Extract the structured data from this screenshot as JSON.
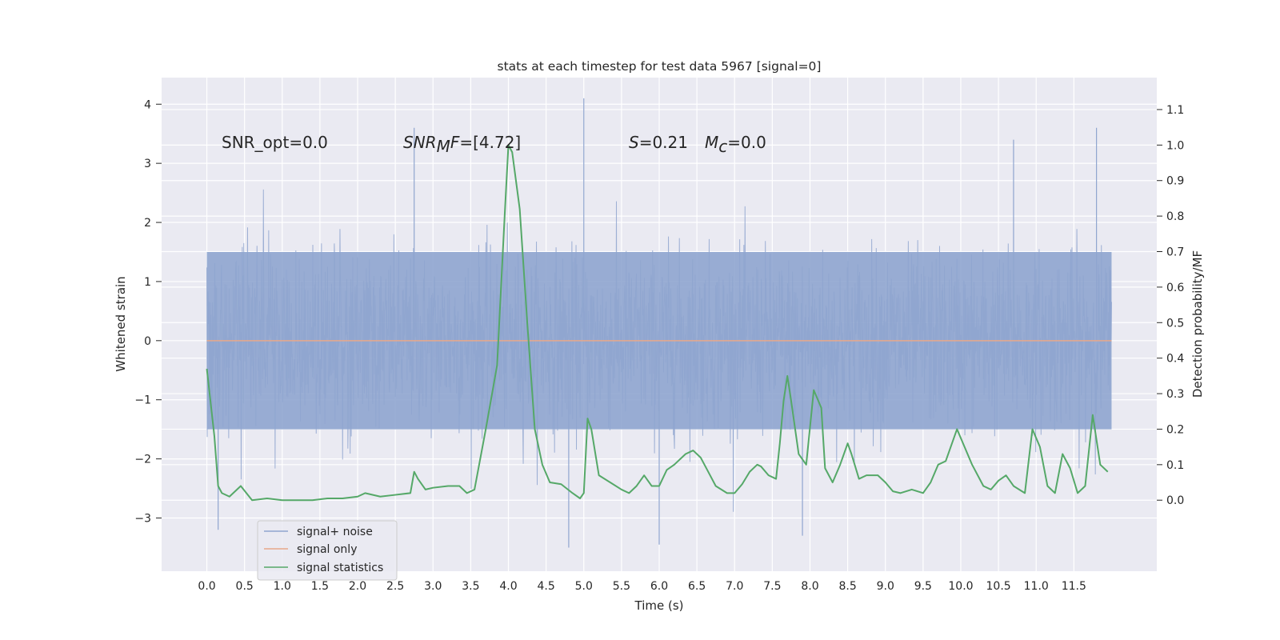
{
  "chart_data": {
    "type": "line",
    "title": "stats at each timestep for test data 5967 [signal=0]",
    "xlabel": "Time (s)",
    "ylabel_left": "Whitened strain",
    "ylabel_right": "Detection probability/MF",
    "xlim": [
      -0.6,
      12.6
    ],
    "ylim_left": [
      -3.9,
      4.45
    ],
    "ylim_right": [
      -0.2,
      1.19
    ],
    "x_ticks": [
      0.0,
      0.5,
      1.0,
      1.5,
      2.0,
      2.5,
      3.0,
      3.5,
      4.0,
      4.5,
      5.0,
      5.5,
      6.0,
      6.5,
      7.0,
      7.5,
      8.0,
      8.5,
      9.0,
      9.5,
      10.0,
      10.5,
      11.0,
      11.5
    ],
    "x_tick_labels": [
      "0.0",
      "0.5",
      "1.0",
      "1.5",
      "2.0",
      "2.5",
      "3.0",
      "3.5",
      "4.0",
      "4.5",
      "5.0",
      "5.5",
      "6.0",
      "6.5",
      "7.0",
      "7.5",
      "8.0",
      "8.5",
      "9.0",
      "9.5",
      "10.0",
      "10.5",
      "11.0",
      "11.5"
    ],
    "y_ticks_left": [
      -3,
      -2,
      -1,
      0,
      1,
      2,
      3,
      4
    ],
    "y_tick_labels_left": [
      "−3",
      "−2",
      "−1",
      "0",
      "1",
      "2",
      "3",
      "4"
    ],
    "y_ticks_right": [
      0.0,
      0.1,
      0.2,
      0.3,
      0.4,
      0.5,
      0.6,
      0.7,
      0.8,
      0.9,
      1.0,
      1.1
    ],
    "y_tick_labels_right": [
      "0.0",
      "0.1",
      "0.2",
      "0.3",
      "0.4",
      "0.5",
      "0.6",
      "0.7",
      "0.8",
      "0.9",
      "1.0",
      "1.1"
    ],
    "grid": true,
    "legend_position": "lower-left",
    "annotations": {
      "snr_opt": "SNR_opt=0.0",
      "snr_mf_label": "SNR",
      "snr_mf_sub": "M",
      "snr_mf_tail": "F",
      "snr_mf_value": "=[4.72]",
      "s_label": "S",
      "s_value": "=0.21",
      "mc_label": "M",
      "mc_sub": "c",
      "mc_value": "=0.0"
    },
    "series": [
      {
        "name": "signal+ noise",
        "axis": "left",
        "color": "#8fa5cf",
        "kind": "noise",
        "x_range": [
          0.0,
          12.0
        ],
        "envelope_core": [
          -1.5,
          1.5
        ],
        "extreme_low": -3.5,
        "extreme_high": 4.1
      },
      {
        "name": "signal only",
        "axis": "left",
        "color": "#e8a88a",
        "x": [
          0.0,
          12.0
        ],
        "y": [
          0.0,
          0.0
        ]
      },
      {
        "name": "signal statistics",
        "axis": "right",
        "color": "#55a868",
        "x": [
          0.0,
          0.1,
          0.15,
          0.2,
          0.3,
          0.45,
          0.6,
          0.8,
          1.0,
          1.2,
          1.4,
          1.6,
          1.8,
          2.0,
          2.1,
          2.3,
          2.5,
          2.7,
          2.75,
          2.8,
          2.9,
          3.0,
          3.2,
          3.35,
          3.45,
          3.55,
          3.7,
          3.85,
          3.95,
          4.0,
          4.05,
          4.15,
          4.25,
          4.35,
          4.45,
          4.55,
          4.7,
          4.85,
          4.95,
          5.0,
          5.05,
          5.1,
          5.2,
          5.35,
          5.5,
          5.6,
          5.7,
          5.8,
          5.9,
          6.0,
          6.1,
          6.2,
          6.35,
          6.45,
          6.55,
          6.65,
          6.75,
          6.9,
          7.0,
          7.1,
          7.2,
          7.3,
          7.35,
          7.45,
          7.55,
          7.6,
          7.65,
          7.7,
          7.75,
          7.85,
          7.95,
          8.05,
          8.15,
          8.2,
          8.3,
          8.4,
          8.5,
          8.55,
          8.65,
          8.75,
          8.9,
          9.0,
          9.1,
          9.2,
          9.35,
          9.5,
          9.6,
          9.7,
          9.8,
          9.95,
          10.05,
          10.15,
          10.3,
          10.4,
          10.5,
          10.6,
          10.7,
          10.85,
          10.95,
          11.05,
          11.15,
          11.25,
          11.35,
          11.45,
          11.55,
          11.65,
          11.75,
          11.85,
          11.95
        ],
        "y": [
          0.37,
          0.18,
          0.04,
          0.02,
          0.01,
          0.04,
          0.0,
          0.005,
          0.0,
          0.0,
          0.0,
          0.005,
          0.005,
          0.01,
          0.02,
          0.01,
          0.015,
          0.02,
          0.08,
          0.06,
          0.03,
          0.035,
          0.04,
          0.04,
          0.02,
          0.03,
          0.2,
          0.38,
          0.8,
          1.0,
          0.98,
          0.82,
          0.5,
          0.2,
          0.1,
          0.05,
          0.045,
          0.02,
          0.005,
          0.02,
          0.23,
          0.2,
          0.07,
          0.05,
          0.03,
          0.02,
          0.04,
          0.07,
          0.04,
          0.04,
          0.085,
          0.1,
          0.13,
          0.14,
          0.12,
          0.08,
          0.04,
          0.02,
          0.02,
          0.045,
          0.08,
          0.1,
          0.095,
          0.07,
          0.06,
          0.16,
          0.28,
          0.35,
          0.28,
          0.13,
          0.1,
          0.31,
          0.26,
          0.09,
          0.05,
          0.1,
          0.16,
          0.13,
          0.06,
          0.07,
          0.07,
          0.05,
          0.025,
          0.02,
          0.03,
          0.02,
          0.05,
          0.1,
          0.11,
          0.2,
          0.15,
          0.1,
          0.04,
          0.03,
          0.055,
          0.07,
          0.04,
          0.02,
          0.2,
          0.15,
          0.04,
          0.02,
          0.13,
          0.09,
          0.02,
          0.04,
          0.24,
          0.1,
          0.08
        ]
      }
    ]
  }
}
